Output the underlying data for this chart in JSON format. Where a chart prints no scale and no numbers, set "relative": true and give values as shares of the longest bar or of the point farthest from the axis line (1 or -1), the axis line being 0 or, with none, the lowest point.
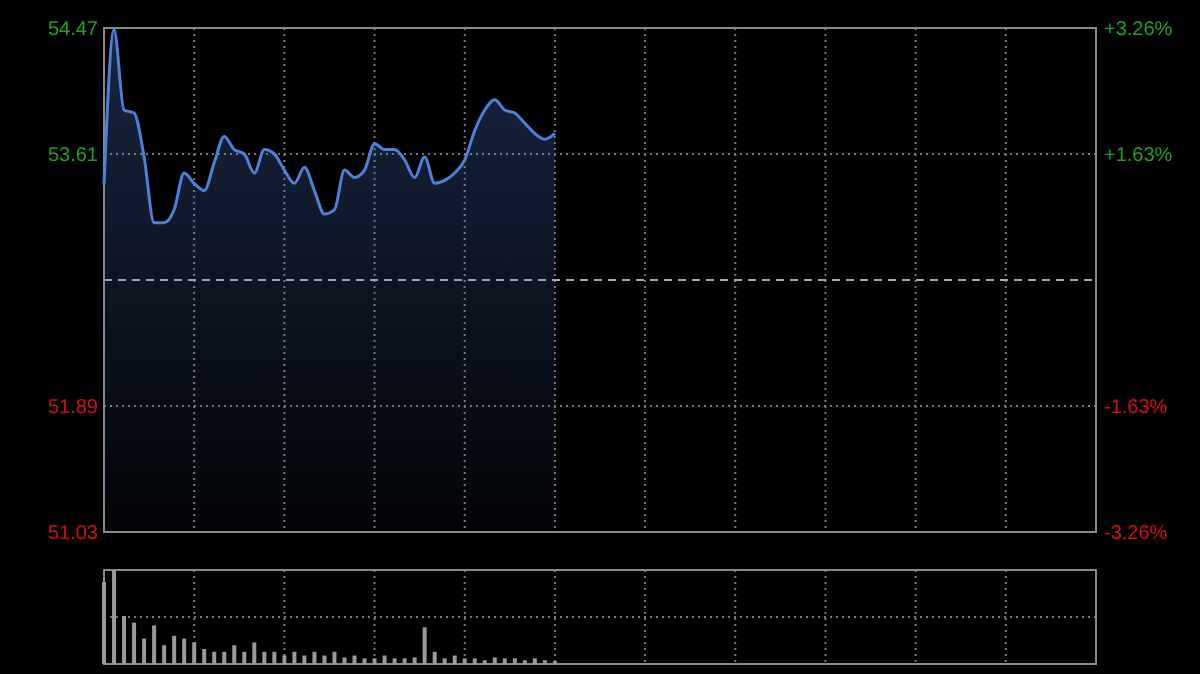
{
  "chart_data": [
    {
      "type": "area",
      "categories": [
        null,
        null,
        null,
        null,
        null,
        null,
        null,
        null,
        null,
        null,
        null,
        null,
        null,
        null,
        null,
        null,
        null,
        null,
        null,
        null,
        null,
        null,
        null,
        null,
        null,
        null,
        null,
        null,
        null,
        null,
        null,
        null,
        null,
        null,
        null,
        null,
        null,
        null,
        null,
        null,
        null,
        null,
        null,
        null,
        null,
        null,
        null,
        null,
        null,
        null,
        null,
        null,
        null,
        null,
        null,
        null,
        null,
        null,
        null,
        null,
        null,
        null,
        null,
        null,
        null,
        null,
        null,
        null,
        null,
        null,
        null,
        null,
        null,
        null,
        null,
        null,
        null,
        null,
        null,
        null,
        null,
        null,
        null,
        null,
        null,
        null,
        null,
        null,
        null,
        null,
        null,
        null,
        null,
        null,
        null,
        null,
        null,
        null,
        null,
        null
      ],
      "series": [
        {
          "color": "#4f7fd8",
          "values": [
            53.4,
            54.46,
            53.91,
            53.89,
            53.59,
            53.14,
            53.14,
            53.23,
            53.48,
            53.41,
            53.36,
            53.55,
            53.73,
            53.64,
            53.61,
            53.48,
            53.64,
            53.61,
            53.5,
            53.41,
            53.52,
            53.36,
            53.2,
            53.23,
            53.5,
            53.45,
            53.5,
            53.68,
            53.64,
            53.64,
            53.57,
            53.45,
            53.59,
            53.41,
            53.43,
            53.48,
            53.57,
            53.77,
            53.91,
            53.98,
            53.91,
            53.89,
            53.82,
            53.75,
            53.71,
            53.75,
            null,
            null,
            null,
            null,
            null,
            null,
            null,
            null,
            null,
            null,
            null,
            null,
            null,
            null,
            null,
            null,
            null,
            null,
            null,
            null,
            null,
            null,
            null,
            null,
            null,
            null,
            null,
            null,
            null,
            null,
            null,
            null,
            null,
            null,
            null,
            null,
            null,
            null,
            null,
            null,
            null,
            null,
            null,
            null,
            null,
            null,
            null,
            null,
            null,
            null,
            null,
            null,
            null,
            null
          ]
        }
      ],
      "ylim": [
        51.03,
        54.47
      ],
      "yticks": [
        54.47,
        53.61,
        51.89,
        51.03
      ],
      "y2lim": [
        -3.26,
        3.26
      ],
      "y2ticks": [
        {
          "value": 3.26,
          "label": "+3.26%"
        },
        {
          "value": 1.63,
          "label": "+1.63%"
        },
        {
          "value": -1.63,
          "label": "-1.63%"
        },
        {
          "value": -3.26,
          "label": "-3.26%"
        }
      ],
      "ref_lines": [
        {
          "axis": "y",
          "value": 52.75,
          "line_style": "dashed"
        }
      ],
      "grid": true
    },
    {
      "type": "bar",
      "relative": true,
      "color": "#9a9a9a",
      "grid": true,
      "categories": [
        null,
        null,
        null,
        null,
        null,
        null,
        null,
        null,
        null,
        null,
        null,
        null,
        null,
        null,
        null,
        null,
        null,
        null,
        null,
        null,
        null,
        null,
        null,
        null,
        null,
        null,
        null,
        null,
        null,
        null,
        null,
        null,
        null,
        null,
        null,
        null,
        null,
        null,
        null,
        null,
        null,
        null,
        null,
        null,
        null,
        null,
        null,
        null,
        null,
        null,
        null,
        null,
        null,
        null,
        null,
        null,
        null,
        null,
        null,
        null,
        null,
        null,
        null,
        null,
        null,
        null,
        null,
        null,
        null,
        null,
        null,
        null,
        null,
        null,
        null,
        null,
        null,
        null,
        null,
        null,
        null,
        null,
        null,
        null,
        null,
        null,
        null,
        null,
        null,
        null,
        null,
        null,
        null,
        null,
        null,
        null,
        null,
        null,
        null,
        null
      ],
      "values": [
        0.87,
        1,
        0.51,
        0.44,
        0.27,
        0.41,
        0.2,
        0.3,
        0.27,
        0.23,
        0.16,
        0.13,
        0.13,
        0.2,
        0.13,
        0.23,
        0.13,
        0.13,
        0.09,
        0.13,
        0.09,
        0.13,
        0.09,
        0.13,
        0.07,
        0.09,
        0.06,
        0.06,
        0.09,
        0.06,
        0.06,
        0.07,
        0.39,
        0.13,
        0.06,
        0.09,
        0.06,
        0.06,
        0.04,
        0.07,
        0.06,
        0.06,
        0.04,
        0.06,
        0.04,
        0.03,
        null,
        null,
        null,
        null,
        null,
        null,
        null,
        null,
        null,
        null,
        null,
        null,
        null,
        null,
        null,
        null,
        null,
        null,
        null,
        null,
        null,
        null,
        null,
        null,
        null,
        null,
        null,
        null,
        null,
        null,
        null,
        null,
        null,
        null,
        null,
        null,
        null,
        null,
        null,
        null,
        null,
        null,
        null,
        null,
        null,
        null,
        null,
        null,
        null,
        null,
        null,
        null,
        null,
        null
      ]
    }
  ]
}
